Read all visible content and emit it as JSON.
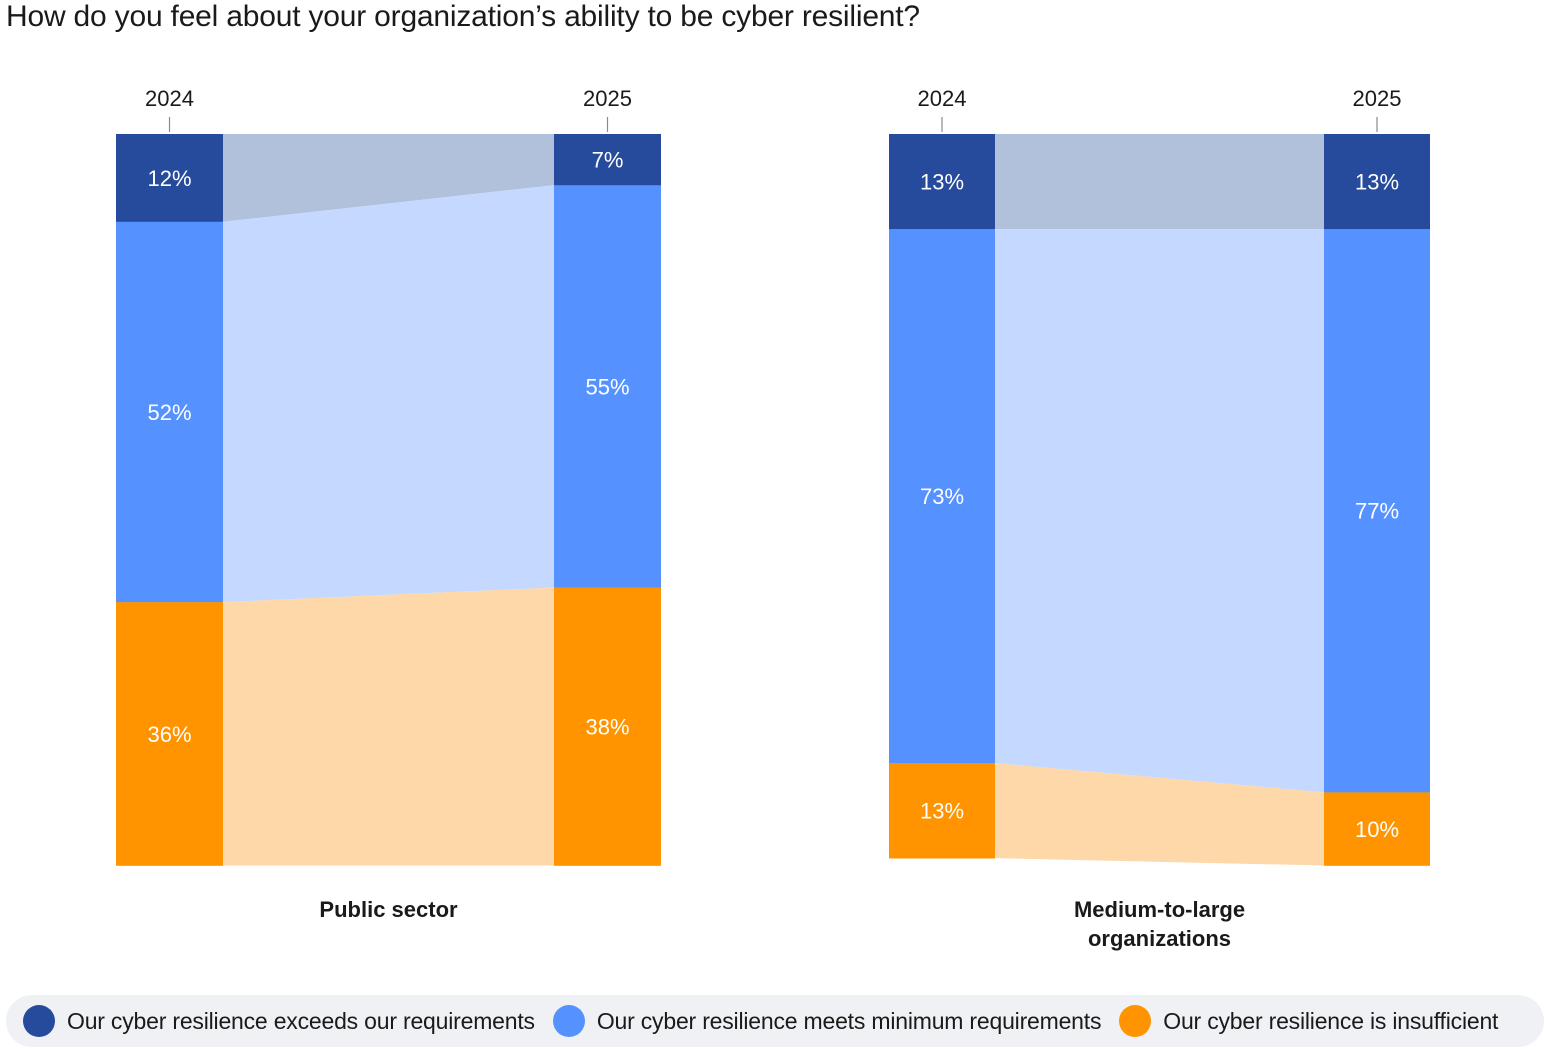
{
  "title": "How do you feel about your organization’s ability to be cyber resilient?",
  "colors": {
    "exceeds": "#264a9c",
    "meets": "#5592ff",
    "insufficient": "#ff9400",
    "exceeds_band": "#b1c0db",
    "meets_band": "#c5d8ff",
    "insufficient_band": "#fed8a8"
  },
  "legend": {
    "items": [
      {
        "label": "Our cyber resilience exceeds our requirements",
        "color": "#264a9c"
      },
      {
        "label": "Our cyber resilience meets minimum requirements",
        "color": "#5592ff"
      },
      {
        "label": "Our cyber resilience is insufficient",
        "color": "#ff9400"
      }
    ]
  },
  "chart_data": [
    {
      "type": "bar",
      "title": "Public sector",
      "categories": [
        "2024",
        "2025"
      ],
      "series": [
        {
          "name": "Our cyber resilience exceeds our requirements",
          "values": [
            12,
            7
          ],
          "labels": [
            "12%",
            "7%"
          ]
        },
        {
          "name": "Our cyber resilience meets minimum requirements",
          "values": [
            52,
            55
          ],
          "labels": [
            "52%",
            "55%"
          ]
        },
        {
          "name": "Our cyber resilience is insufficient",
          "values": [
            36,
            38
          ],
          "labels": [
            "36%",
            "38%"
          ]
        }
      ],
      "stacked": true,
      "unit": "%"
    },
    {
      "type": "bar",
      "title": "Medium-to-large organizations",
      "categories": [
        "2024",
        "2025"
      ],
      "series": [
        {
          "name": "Our cyber resilience exceeds our requirements",
          "values": [
            13,
            13
          ],
          "labels": [
            "13%",
            "13%"
          ]
        },
        {
          "name": "Our cyber resilience meets minimum requirements",
          "values": [
            73,
            77
          ],
          "labels": [
            "73%",
            "77%"
          ]
        },
        {
          "name": "Our cyber resilience is insufficient",
          "values": [
            13,
            10
          ],
          "labels": [
            "13%",
            "10%"
          ]
        }
      ],
      "stacked": true,
      "unit": "%"
    }
  ]
}
